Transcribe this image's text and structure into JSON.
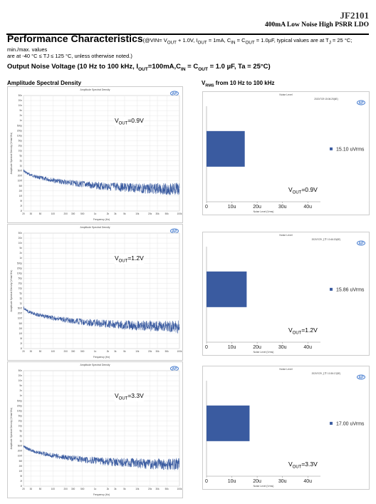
{
  "header": {
    "part": "JF2101",
    "subtitle": "400mA Low Noise High PSRR LDO"
  },
  "perf": {
    "title": "Performance Characteristics",
    "conditions_1": "(@VIN= V",
    "conditions_1_sub": "OUT",
    "conditions_2": " + 1.0V, I",
    "conditions_2_sub": "OUT",
    "conditions_3": " = 1mA, C",
    "conditions_3_sub": "IN",
    "conditions_4": " = C",
    "conditions_4_sub": "OUT",
    "conditions_5": " = 1.0µF, typical values are at T",
    "conditions_5_sub": "J",
    "conditions_6": " = 25 °C; min./max. values",
    "conditions_line2": "are at -40 °C ≤ TJ ≤ 125 °C, unless otherwise noted.)"
  },
  "section": {
    "prefix": "Output Noise Voltage (10 Hz to 100 kHz, I",
    "sub1": "OUT",
    "mid": "=100mA,C",
    "sub2": "IN",
    "mid2": " = C",
    "sub3": "OUT",
    "suffix": " = 1.0 µF, Ta = 25°C)"
  },
  "left_label": "Amplitude Spectral Density",
  "right_label_prefix": "V",
  "right_label_sub": "RMS",
  "right_label_suffix": " from 10 Hz to 100 kHz",
  "asd_plot": {
    "title": "Amplitude Spectral Density",
    "ylabel": "Amplitude Spectral Density (Vrms/√Hz)",
    "xlabel": "Frequency (Hz)",
    "x_ticks": [
      "20",
      "30",
      "50",
      "100",
      "200",
      "300",
      "500",
      "1k",
      "2k",
      "3k",
      "5k",
      "10k",
      "20k",
      "30k",
      "50k",
      "100k"
    ],
    "y_ticks": [
      "50n",
      "20n",
      "10n",
      "5n",
      "2n",
      "1n",
      "500p",
      "200p",
      "100p",
      "50p",
      "20p",
      "10p",
      "5p",
      "2p",
      "1p",
      "500f",
      "200f",
      "100f",
      "50f",
      "20f",
      "10f",
      "5f",
      "2f",
      "1f"
    ]
  },
  "level_plot": {
    "title": "Noise Level",
    "xlabel": "Noise Level (Vrms)",
    "x_ticks": [
      "0",
      "10u",
      "20u",
      "30u",
      "40u"
    ]
  },
  "chart_data": [
    {
      "type": "line",
      "title": "Amplitude Spectral Density",
      "annotation_prefix": "V",
      "annotation_sub": "OUT",
      "annotation_suffix": "=0.9V",
      "x_scale": "log",
      "xlim": [
        20,
        100000
      ]
    },
    {
      "type": "bar",
      "title": "Noise Level",
      "date": "2020/7/29  15:06:25(6E)",
      "categories": [
        ""
      ],
      "values": [
        15.1
      ],
      "data_label": "15.10 uVrms",
      "xlim": [
        0,
        45
      ],
      "annotation_prefix": "V",
      "annotation_sub": "OUT",
      "annotation_suffix": "=0.9V"
    },
    {
      "type": "line",
      "title": "Amplitude Spectral Density",
      "annotation_prefix": "V",
      "annotation_sub": "OUT",
      "annotation_suffix": "=1.2V",
      "x_scale": "log",
      "xlim": [
        20,
        100000
      ]
    },
    {
      "type": "bar",
      "title": "Noise Level",
      "date": "2020/7/29  上午 10:46:20(6E)",
      "categories": [
        ""
      ],
      "values": [
        15.86
      ],
      "data_label": "15.86 uVrms",
      "xlim": [
        0,
        45
      ],
      "annotation_prefix": "V",
      "annotation_sub": "OUT",
      "annotation_suffix": "=1.2V"
    },
    {
      "type": "line",
      "title": "Amplitude Spectral Density",
      "annotation_prefix": "V",
      "annotation_sub": "OUT",
      "annotation_suffix": "=3.3V",
      "x_scale": "log",
      "xlim": [
        20,
        100000
      ]
    },
    {
      "type": "bar",
      "title": "Noise Level",
      "date": "2020/7/29  上午 10:36:17(6E)",
      "categories": [
        ""
      ],
      "values": [
        17.0
      ],
      "data_label": "17.00 uVrms",
      "xlim": [
        0,
        45
      ],
      "annotation_prefix": "V",
      "annotation_sub": "OUT",
      "annotation_suffix": "=3.3V"
    }
  ],
  "colors": {
    "series": "#3a5ba0",
    "grid": "#e2e2e2",
    "logo": "#4a7fd0"
  }
}
